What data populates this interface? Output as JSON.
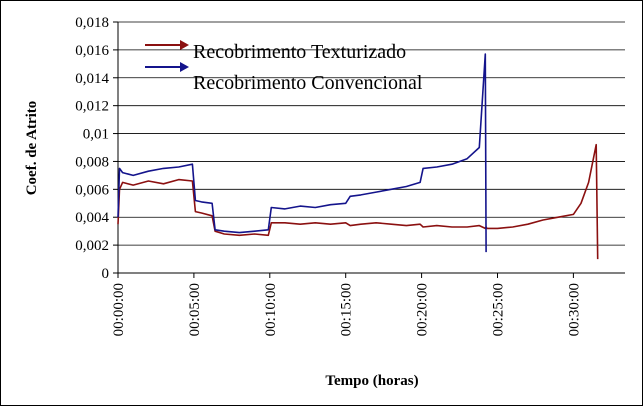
{
  "chart_data": {
    "type": "line",
    "xlabel": "Tempo (horas)",
    "ylabel": "Coef. de Atrito",
    "x": [
      0,
      0.1,
      0.3,
      1,
      2,
      3,
      4,
      4.9,
      5.1,
      5.5,
      6.2,
      6.4,
      7,
      8,
      9,
      9.9,
      10.1,
      11,
      12,
      13,
      14,
      15,
      15.3,
      16,
      17,
      18,
      19,
      19.9,
      20.1,
      21,
      22,
      23,
      23.8,
      24.2,
      24.25,
      24.3,
      25,
      26,
      27,
      28,
      29,
      30,
      30.5,
      31,
      31.5,
      31.6
    ],
    "series": [
      {
        "name": "Recobrimento Texturizado",
        "color": "#8b1010",
        "values": [
          0.0035,
          0.006,
          0.0065,
          0.0063,
          0.0066,
          0.0064,
          0.0067,
          0.0066,
          0.0044,
          0.0043,
          0.0041,
          0.003,
          0.0028,
          0.0027,
          0.0028,
          0.0027,
          0.0036,
          0.0036,
          0.0035,
          0.0036,
          0.0035,
          0.0036,
          0.0034,
          0.0035,
          0.0036,
          0.0035,
          0.0034,
          0.0035,
          0.0033,
          0.0034,
          0.0033,
          0.0033,
          0.0034,
          0.0032,
          0.0033,
          0.0032,
          0.0032,
          0.0033,
          0.0035,
          0.0038,
          0.004,
          0.0042,
          0.005,
          0.0065,
          0.0092,
          0.001
        ]
      },
      {
        "name": "Recobrimento Convencional",
        "color": "#14148c",
        "values": [
          0.004,
          0.0075,
          0.0072,
          0.007,
          0.0073,
          0.0075,
          0.0076,
          0.0078,
          0.0052,
          0.0051,
          0.005,
          0.0031,
          0.003,
          0.0029,
          0.003,
          0.0031,
          0.0047,
          0.0046,
          0.0048,
          0.0047,
          0.0049,
          0.005,
          0.0055,
          0.0056,
          0.0058,
          0.006,
          0.0062,
          0.0065,
          0.0075,
          0.0076,
          0.0078,
          0.0082,
          0.009,
          0.0157,
          0.0015,
          null,
          null,
          null,
          null,
          null,
          null,
          null,
          null,
          null,
          null,
          null
        ]
      }
    ],
    "xlim": [
      0,
      33.4
    ],
    "xticks": [
      {
        "value": 0,
        "label": "00:00:00"
      },
      {
        "value": 5,
        "label": "00:05:00"
      },
      {
        "value": 10,
        "label": "00:10:00"
      },
      {
        "value": 15,
        "label": "00:15:00"
      },
      {
        "value": 20,
        "label": "00:20:00"
      },
      {
        "value": 25,
        "label": "00:25:00"
      },
      {
        "value": 30,
        "label": "00:30:00"
      }
    ],
    "ylim": [
      0,
      0.018
    ],
    "yticks": [
      0,
      {
        "value": 0.002,
        "label": "0,002"
      },
      {
        "value": 0.004,
        "label": "0,004"
      },
      {
        "value": 0.006,
        "label": "0,006"
      },
      {
        "value": 0.008,
        "label": "0,008"
      },
      {
        "value": 0.01,
        "label": "0,01"
      },
      {
        "value": 0.012,
        "label": "0,012"
      },
      {
        "value": 0.014,
        "label": "0,014"
      },
      {
        "value": 0.016,
        "label": "0,016"
      },
      {
        "value": 0.018,
        "label": "0,018"
      }
    ],
    "grid": true
  }
}
